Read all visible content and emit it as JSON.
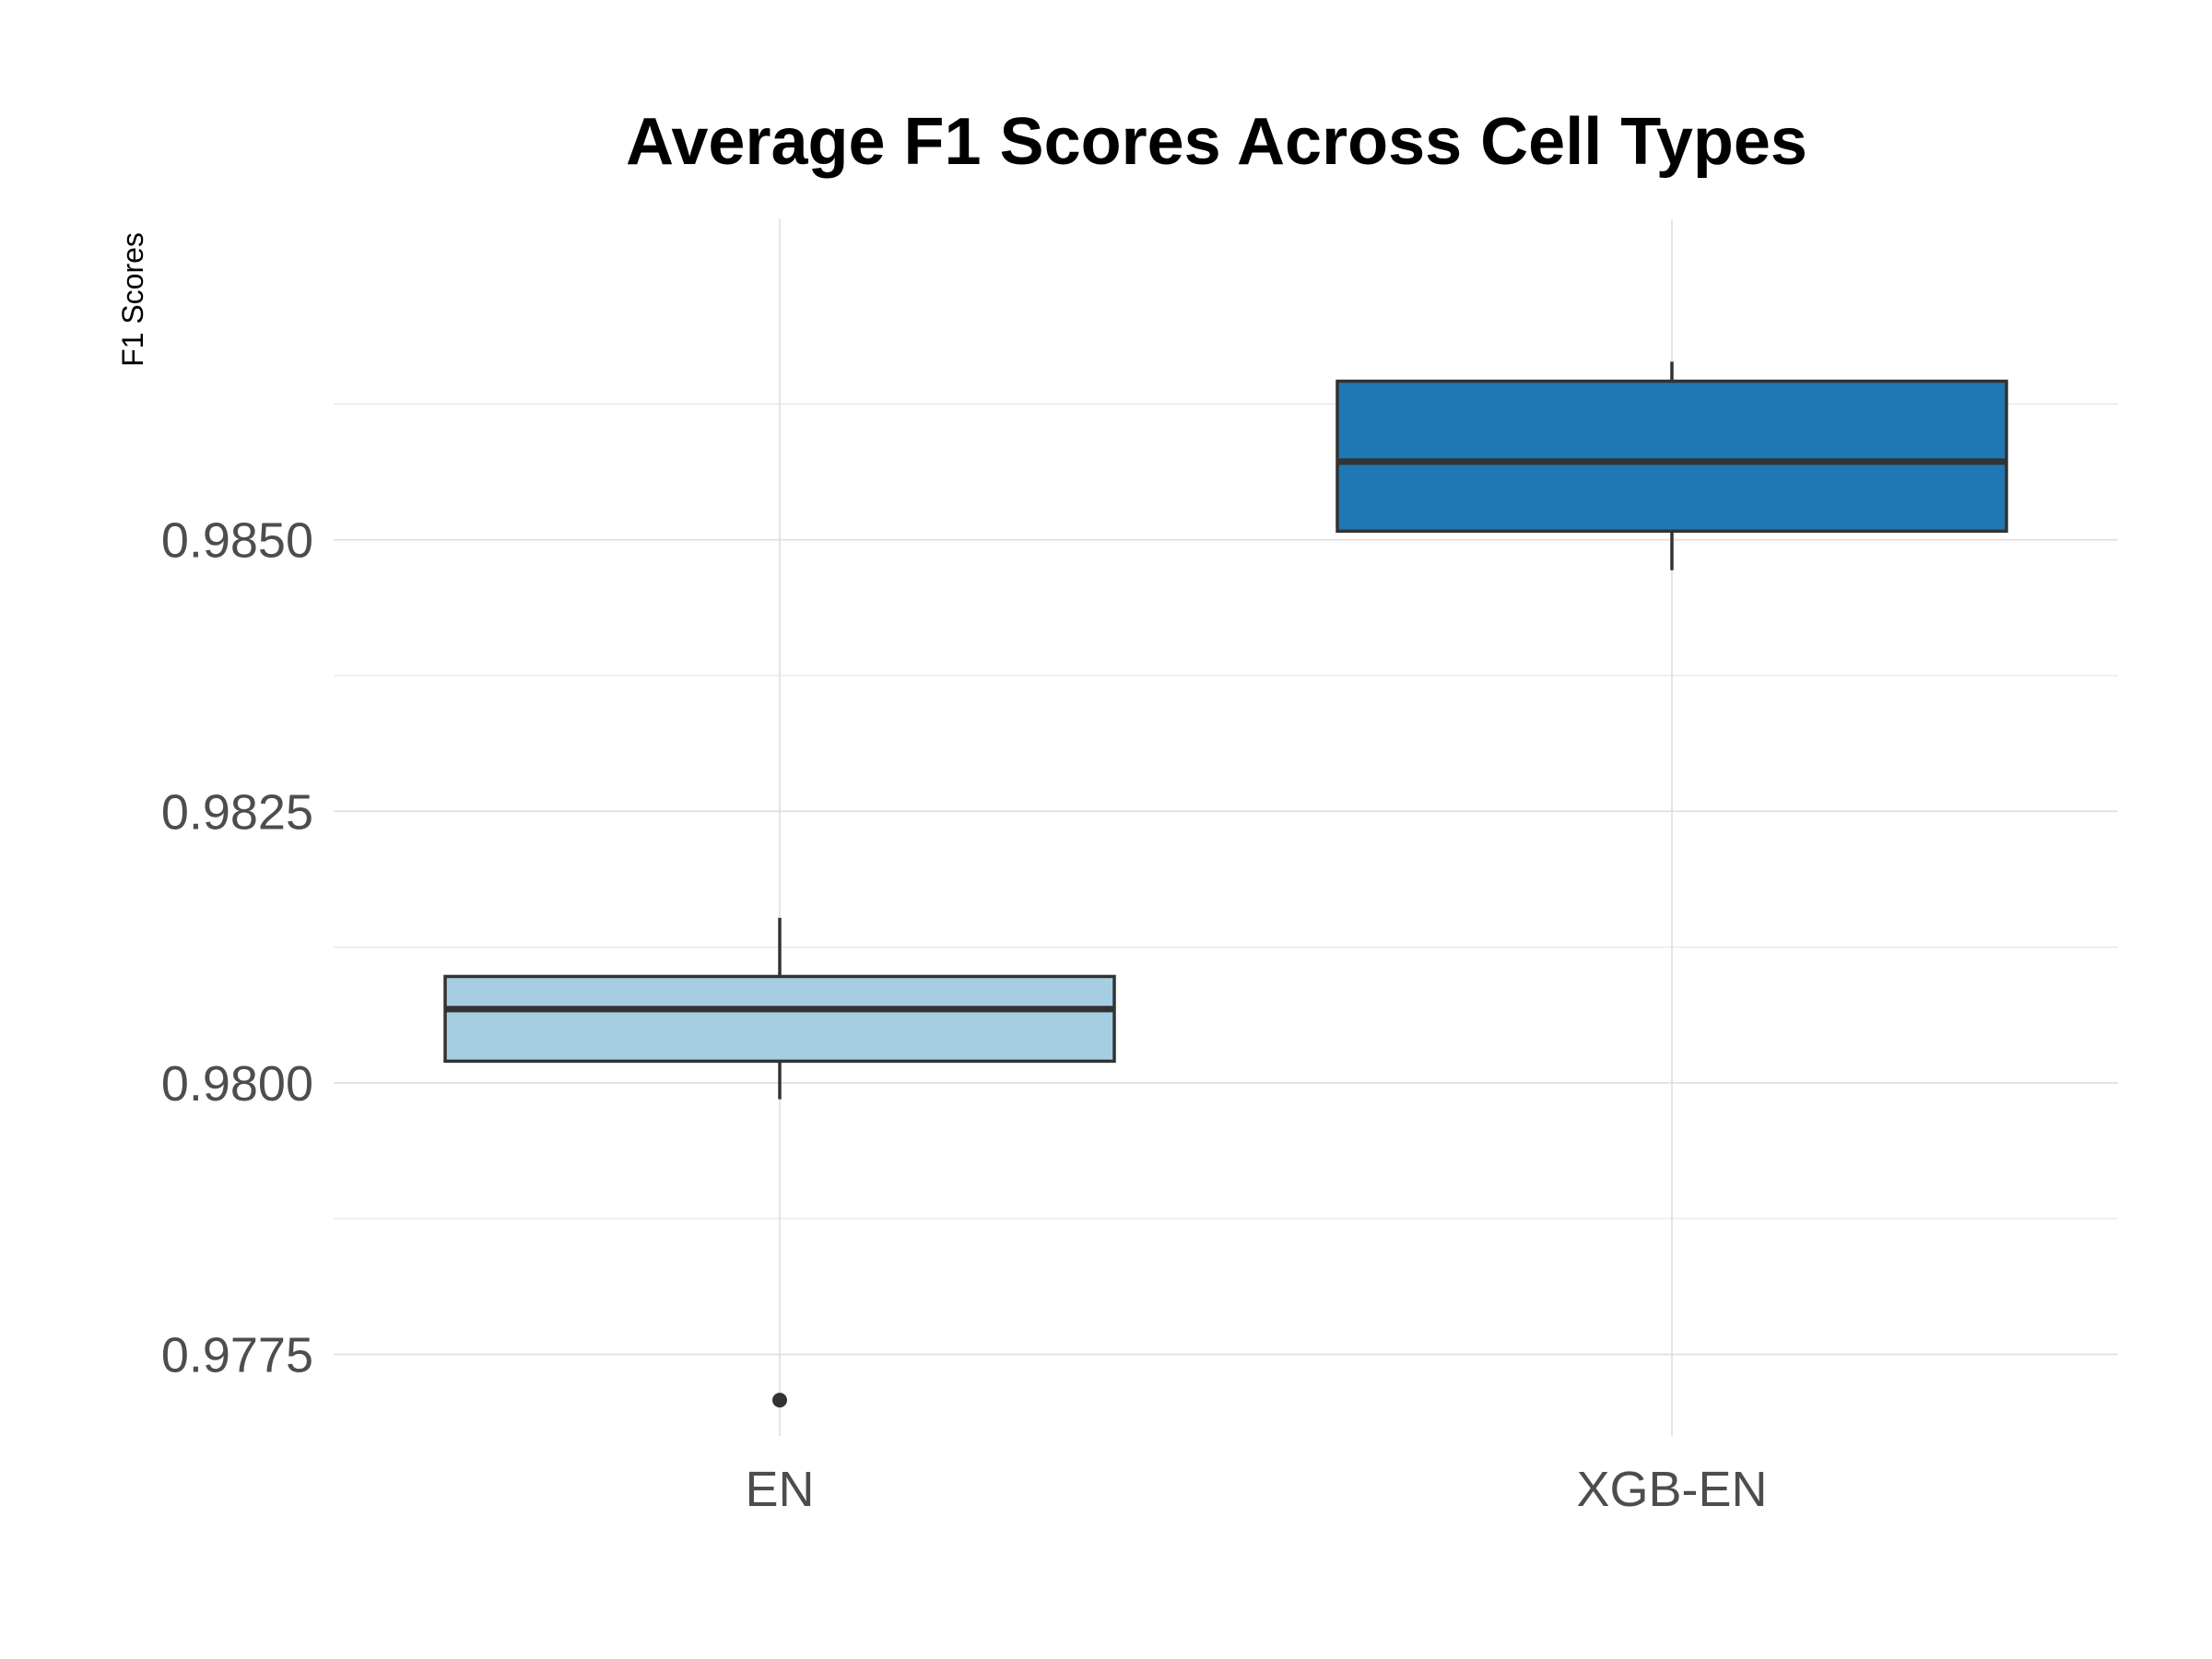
{
  "chart_data": {
    "type": "boxplot",
    "title": "Average F1 Scores Across Cell Types",
    "xlabel": "",
    "ylabel": "F1 Scores",
    "categories": [
      "EN",
      "XGB-EN"
    ],
    "y_ticks": [
      0.9775,
      0.98,
      0.9825,
      0.985
    ],
    "y_tick_labels": [
      "0.9775",
      "0.9800",
      "0.9825",
      "0.9850"
    ],
    "ylim": [
      0.97675,
      0.98795
    ],
    "grid": true,
    "legend": "none",
    "boxes": [
      {
        "category": "EN",
        "whisker_low": 0.97985,
        "q1": 0.9802,
        "median": 0.98068,
        "q3": 0.98098,
        "whisker_high": 0.98152,
        "outliers": [
          0.97708
        ],
        "color": "#a6cee3"
      },
      {
        "category": "XGB-EN",
        "whisker_low": 0.98472,
        "q1": 0.98508,
        "median": 0.98572,
        "q3": 0.98646,
        "whisker_high": 0.98664,
        "outliers": [],
        "color": "#1f78b4"
      }
    ],
    "box_outline_color": "#333333"
  }
}
